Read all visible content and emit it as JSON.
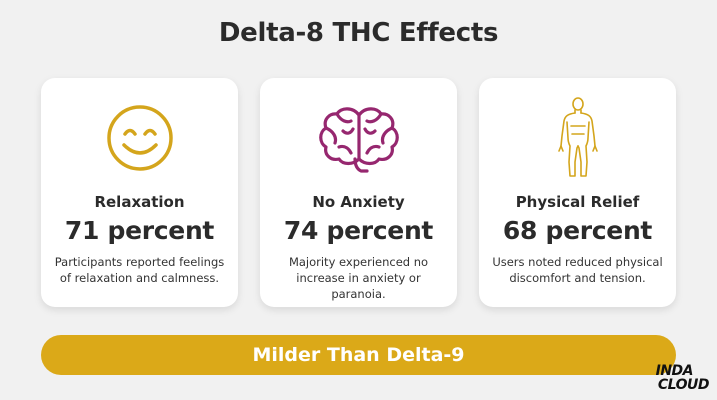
{
  "title": "Delta-8 THC Effects",
  "cards": [
    {
      "icon": "smiley-face-icon",
      "heading": "Relaxation",
      "value": "71 percent",
      "description": "Participants reported feelings of relaxation and calmness."
    },
    {
      "icon": "brain-icon",
      "heading": "No Anxiety",
      "value": "74 percent",
      "description": "Majority experienced no increase in anxiety or paranoia."
    },
    {
      "icon": "human-body-icon",
      "heading": "Physical Relief",
      "value": "68 percent",
      "description": "Users noted reduced physical discomfort and tension."
    }
  ],
  "banner": "Milder Than Delta-9",
  "logo": {
    "line1": "INDA",
    "line2": "CLOUD"
  },
  "colors": {
    "background": "#f1f1f1",
    "accent_gold": "#dba918",
    "brain_purple": "#96276f",
    "text_dark": "#2b2b2b"
  }
}
